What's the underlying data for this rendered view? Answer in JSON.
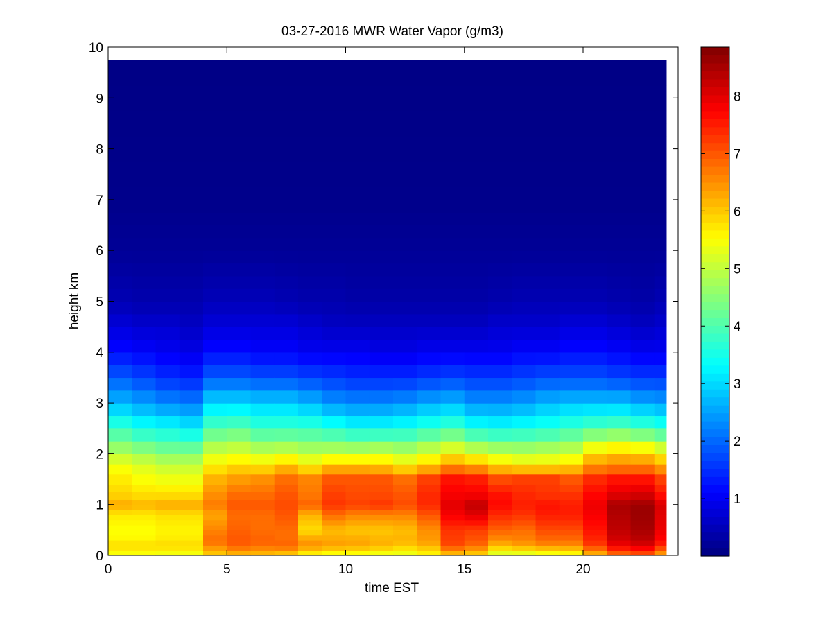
{
  "chart_data": {
    "type": "heatmap",
    "title": "03-27-2016 MWR Water Vapor (g/m3)",
    "xlabel": "time EST",
    "ylabel": "height km",
    "xlim": [
      0,
      24
    ],
    "ylim": [
      0,
      10
    ],
    "x_ticks": [
      0,
      5,
      10,
      15,
      20
    ],
    "y_ticks": [
      0,
      1,
      2,
      3,
      4,
      5,
      6,
      7,
      8,
      9,
      10
    ],
    "colorbar": {
      "colormap": "jet",
      "range": [
        0,
        8.85
      ],
      "ticks": [
        1,
        2,
        3,
        4,
        5,
        6,
        7,
        8
      ]
    },
    "grid": false,
    "x_hours": [
      0.5,
      1.5,
      2.5,
      3.5,
      4.5,
      5.5,
      6.5,
      7.5,
      8.5,
      9.5,
      10.5,
      11.5,
      12.5,
      13.5,
      14.5,
      15.5,
      16.5,
      17.5,
      18.5,
      19.5,
      20.5,
      21.5,
      22.5,
      23.5
    ],
    "hour_cell_width": 1.0,
    "x_data_max": 23.5,
    "y_height_edges_km": [
      0,
      0.1,
      0.2,
      0.3,
      0.4,
      0.5,
      0.6,
      0.7,
      0.8,
      0.9,
      1.0,
      1.1,
      1.25,
      1.4,
      1.6,
      1.8,
      2.0,
      2.25,
      2.5,
      2.75,
      3.0,
      3.25,
      3.5,
      3.75,
      4.0,
      4.25,
      4.5,
      4.75,
      5.0,
      5.25,
      5.5,
      5.75,
      6.0,
      6.25,
      6.5,
      6.75,
      7.0,
      7.25,
      7.5,
      7.75,
      8.0,
      8.25,
      8.5,
      8.75,
      9.0,
      9.25,
      9.5,
      9.75
    ],
    "profile_heights_km": [
      0,
      0.1,
      0.2,
      0.3,
      0.5,
      0.8,
      1.0,
      1.2,
      1.5,
      1.8,
      2.0,
      2.5,
      3.0,
      3.5,
      4.0,
      4.5,
      5.0,
      6.0,
      7.0,
      10.0
    ],
    "hourly_profiles_g_m3": [
      [
        5.4,
        5.6,
        5.9,
        5.6,
        5.5,
        5.7,
        6.3,
        5.9,
        5.7,
        5.4,
        4.9,
        3.8,
        2.7,
        1.9,
        1.2,
        0.8,
        0.45,
        0.2,
        0.1,
        0.05
      ],
      [
        5.4,
        5.6,
        5.9,
        5.6,
        5.5,
        5.7,
        6.2,
        5.8,
        5.5,
        5.2,
        4.7,
        3.5,
        2.5,
        1.7,
        1.1,
        0.7,
        0.4,
        0.2,
        0.1,
        0.05
      ],
      [
        5.3,
        5.6,
        5.9,
        5.7,
        5.6,
        5.8,
        6.3,
        5.8,
        5.4,
        5.0,
        4.5,
        3.4,
        2.3,
        1.5,
        1.0,
        0.7,
        0.4,
        0.2,
        0.1,
        0.05
      ],
      [
        5.3,
        5.6,
        5.9,
        5.7,
        5.6,
        5.8,
        6.3,
        5.8,
        5.4,
        5.0,
        4.5,
        3.2,
        2.2,
        1.4,
        0.9,
        0.6,
        0.4,
        0.2,
        0.1,
        0.05
      ],
      [
        5.9,
        6.2,
        6.6,
        6.8,
        6.6,
        6.3,
        6.7,
        6.5,
        6.2,
        5.6,
        5.2,
        4.0,
        3.0,
        1.9,
        1.2,
        0.8,
        0.5,
        0.2,
        0.1,
        0.05
      ],
      [
        6.0,
        6.5,
        6.9,
        7.0,
        6.9,
        6.8,
        7.0,
        6.8,
        6.4,
        5.8,
        5.3,
        4.1,
        3.0,
        1.9,
        1.2,
        0.8,
        0.5,
        0.2,
        0.1,
        0.05
      ],
      [
        6.0,
        6.4,
        6.8,
        6.9,
        6.8,
        6.8,
        7.0,
        6.8,
        6.5,
        5.7,
        5.1,
        3.8,
        2.9,
        1.8,
        1.1,
        0.8,
        0.5,
        0.2,
        0.1,
        0.05
      ],
      [
        5.8,
        6.4,
        6.9,
        6.8,
        6.8,
        7.0,
        7.1,
        7.0,
        6.8,
        6.0,
        5.2,
        3.8,
        2.9,
        1.8,
        1.1,
        0.8,
        0.45,
        0.2,
        0.1,
        0.05
      ],
      [
        5.4,
        6.0,
        6.5,
        6.4,
        5.8,
        6.2,
        6.9,
        6.7,
        6.6,
        5.6,
        5.0,
        3.8,
        2.7,
        1.7,
        1.0,
        0.7,
        0.4,
        0.2,
        0.1,
        0.05
      ],
      [
        5.3,
        5.8,
        6.4,
        6.3,
        6.1,
        6.8,
        7.3,
        7.2,
        7.0,
        6.0,
        5.1,
        3.6,
        2.4,
        1.6,
        1.0,
        0.6,
        0.4,
        0.2,
        0.1,
        0.05
      ],
      [
        5.3,
        5.8,
        6.3,
        6.3,
        6.0,
        6.6,
        7.2,
        7.1,
        7.0,
        6.0,
        5.1,
        3.4,
        2.3,
        1.5,
        1.0,
        0.6,
        0.35,
        0.2,
        0.1,
        0.05
      ],
      [
        5.2,
        5.7,
        6.2,
        6.2,
        6.0,
        6.6,
        7.3,
        7.1,
        7.0,
        5.9,
        5.2,
        3.4,
        2.3,
        1.5,
        0.9,
        0.6,
        0.35,
        0.2,
        0.1,
        0.05
      ],
      [
        5.2,
        5.6,
        6.0,
        6.2,
        6.1,
        6.6,
        7.1,
        7.0,
        6.8,
        5.6,
        5.0,
        3.5,
        2.4,
        1.5,
        0.9,
        0.6,
        0.35,
        0.2,
        0.1,
        0.05
      ],
      [
        5.5,
        5.8,
        6.2,
        6.4,
        6.5,
        7.0,
        7.4,
        7.4,
        7.2,
        5.9,
        5.3,
        3.7,
        2.6,
        1.6,
        1.0,
        0.6,
        0.35,
        0.2,
        0.1,
        0.05
      ],
      [
        5.9,
        6.5,
        7.1,
        7.2,
        7.3,
        7.8,
        8.0,
        7.8,
        7.6,
        6.4,
        5.6,
        3.9,
        2.7,
        1.7,
        1.0,
        0.6,
        0.35,
        0.2,
        0.1,
        0.05
      ],
      [
        5.8,
        6.3,
        6.8,
        7.0,
        7.2,
        8.0,
        8.3,
        7.8,
        7.5,
        6.2,
        5.3,
        3.5,
        2.4,
        1.6,
        1.0,
        0.6,
        0.35,
        0.2,
        0.1,
        0.05
      ],
      [
        5.0,
        5.6,
        6.1,
        6.5,
        6.9,
        7.4,
        7.7,
        7.6,
        7.1,
        5.8,
        5.1,
        3.4,
        2.4,
        1.6,
        1.0,
        0.7,
        0.4,
        0.2,
        0.1,
        0.05
      ],
      [
        5.0,
        5.7,
        6.3,
        6.6,
        6.8,
        7.3,
        7.5,
        7.4,
        7.2,
        5.6,
        5.0,
        3.5,
        2.5,
        1.7,
        1.1,
        0.7,
        0.45,
        0.2,
        0.1,
        0.05
      ],
      [
        5.2,
        5.8,
        6.5,
        6.8,
        7.1,
        7.5,
        7.6,
        7.3,
        7.2,
        5.6,
        5.1,
        3.6,
        2.7,
        1.8,
        1.1,
        0.7,
        0.45,
        0.2,
        0.1,
        0.05
      ],
      [
        5.3,
        5.9,
        6.5,
        6.8,
        7.1,
        7.5,
        7.5,
        7.3,
        7.0,
        5.8,
        5.2,
        3.8,
        2.8,
        1.8,
        1.2,
        0.8,
        0.45,
        0.2,
        0.1,
        0.05
      ],
      [
        6.0,
        6.6,
        7.2,
        7.4,
        7.6,
        7.8,
        7.9,
        7.7,
        7.4,
        6.4,
        5.9,
        4.0,
        2.8,
        1.8,
        1.2,
        0.8,
        0.45,
        0.2,
        0.1,
        0.05
      ],
      [
        6.6,
        7.3,
        7.8,
        8.1,
        8.3,
        8.4,
        8.5,
        8.0,
        7.6,
        6.5,
        6.1,
        4.1,
        2.8,
        1.7,
        1.1,
        0.7,
        0.4,
        0.2,
        0.1,
        0.05
      ],
      [
        6.8,
        7.5,
        8.0,
        8.3,
        8.5,
        8.6,
        8.6,
        8.1,
        7.6,
        6.5,
        6.0,
        3.9,
        2.6,
        1.6,
        1.0,
        0.6,
        0.35,
        0.2,
        0.1,
        0.05
      ],
      [
        6.2,
        6.8,
        7.4,
        7.7,
        7.9,
        8.0,
        8.1,
        7.6,
        7.2,
        6.2,
        5.6,
        3.7,
        2.5,
        1.6,
        1.0,
        0.7,
        0.45,
        0.2,
        0.1,
        0.05
      ]
    ]
  }
}
